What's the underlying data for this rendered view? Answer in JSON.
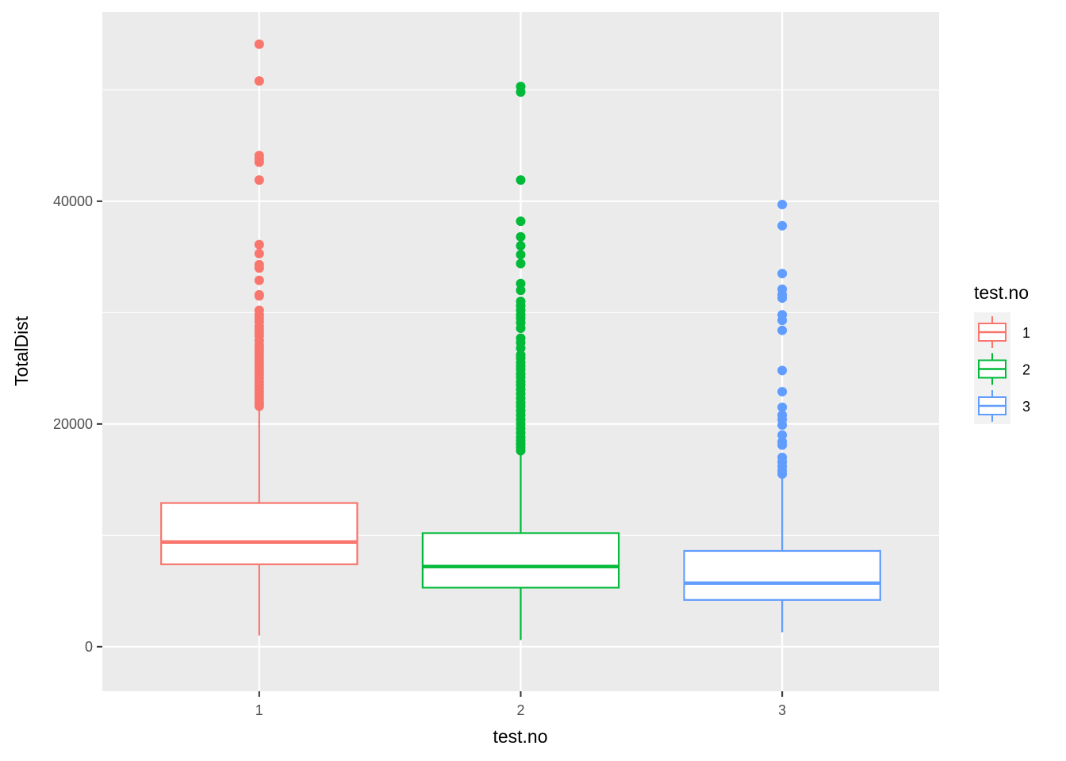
{
  "chart_data": {
    "type": "boxplot",
    "xlabel": "test.no",
    "ylabel": "TotalDist",
    "categories": [
      "1",
      "2",
      "3"
    ],
    "ylim": [
      -4000,
      57000
    ],
    "yticks": [
      0,
      20000,
      40000
    ],
    "ytick_labels": [
      "0",
      "20000",
      "40000"
    ],
    "grid": true,
    "legend": {
      "title": "test.no",
      "position": "right",
      "entries": [
        "1",
        "2",
        "3"
      ]
    },
    "colors": [
      "#F8766D",
      "#00BA38",
      "#619CFF"
    ],
    "boxes": [
      {
        "group": "1",
        "whisker_low": 1000,
        "q1": 7400,
        "median": 9400,
        "q3": 12900,
        "whisker_high": 21300,
        "outliers": [
          54100,
          50800,
          44100,
          43800,
          43500,
          41900,
          36100,
          35300,
          34300,
          34000,
          32900,
          31600,
          31500,
          30200,
          29800,
          29500,
          29200,
          28800,
          28500,
          28200,
          27900,
          27500,
          27100,
          26800,
          26500,
          26200,
          25900,
          25600,
          25300,
          25000,
          24700,
          24400,
          24100,
          23800,
          23500,
          23200,
          22900,
          22600,
          22300,
          22000,
          21800,
          21600
        ]
      },
      {
        "group": "2",
        "whisker_low": 600,
        "q1": 5300,
        "median": 7200,
        "q3": 10200,
        "whisker_high": 17400,
        "outliers": [
          50300,
          49800,
          41900,
          38200,
          36800,
          36000,
          35200,
          34400,
          32600,
          32000,
          31000,
          30600,
          30200,
          29800,
          29500,
          29100,
          28600,
          27700,
          27300,
          26800,
          26200,
          25900,
          25500,
          25200,
          24900,
          24500,
          24200,
          23800,
          23500,
          23100,
          22700,
          22300,
          21900,
          21600,
          21200,
          20800,
          20400,
          20000,
          19600,
          19200,
          18800,
          18500,
          18200,
          17900,
          17600
        ]
      },
      {
        "group": "3",
        "whisker_low": 1300,
        "q1": 4200,
        "median": 5700,
        "q3": 8600,
        "whisker_high": 15100,
        "outliers": [
          39700,
          37800,
          33500,
          32100,
          31600,
          31300,
          29800,
          29300,
          28400,
          24800,
          22900,
          21500,
          20800,
          20400,
          19900,
          19000,
          18400,
          18100,
          17000,
          16600,
          16200,
          15800,
          15500
        ]
      }
    ]
  }
}
